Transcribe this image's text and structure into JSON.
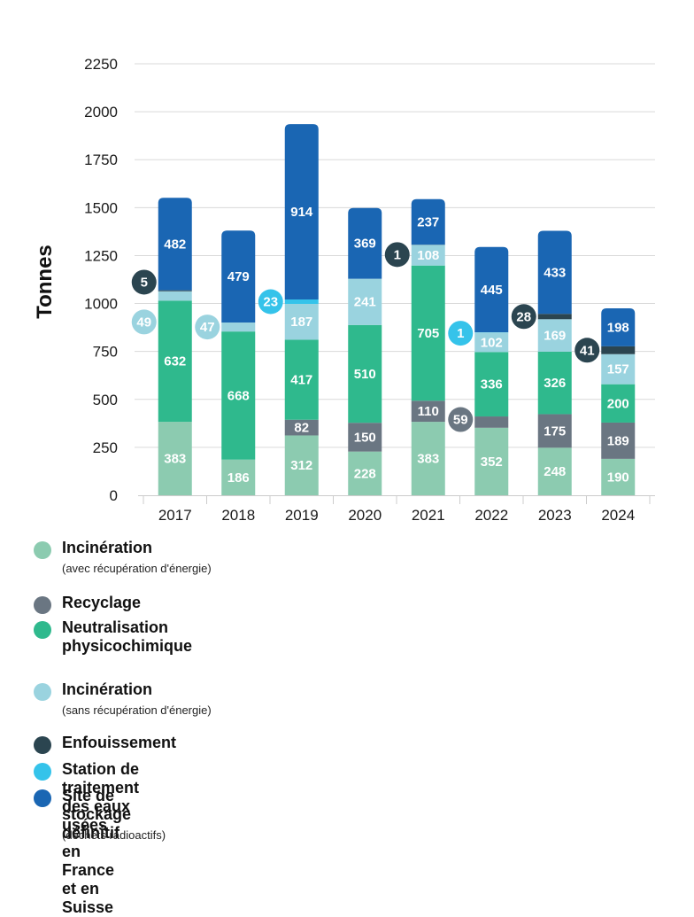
{
  "chart_data": {
    "type": "bar",
    "stacked": true,
    "title": "",
    "xlabel": "",
    "ylabel": "Tonnes",
    "ylim": [
      0,
      2250
    ],
    "yticks": [
      0,
      250,
      500,
      750,
      1000,
      1250,
      1500,
      1750,
      2000,
      2250
    ],
    "grid": true,
    "legend_position": "bottom",
    "categories": [
      "2017",
      "2018",
      "2019",
      "2020",
      "2021",
      "2022",
      "2023",
      "2024"
    ],
    "series": [
      {
        "name": "Incinération",
        "subtitle": "(avec récupération d'énergie)",
        "color": "#8ccbb0",
        "values": [
          383,
          186,
          312,
          228,
          383,
          352,
          248,
          190
        ]
      },
      {
        "name": "Recyclage",
        "subtitle": "",
        "color": "#6a7682",
        "values": [
          0,
          0,
          82,
          150,
          110,
          59,
          175,
          189
        ]
      },
      {
        "name": "Neutralisation physicochimique",
        "subtitle": "",
        "color": "#2fb98d",
        "values": [
          632,
          668,
          417,
          510,
          705,
          336,
          326,
          200
        ]
      },
      {
        "name": "Incinération",
        "subtitle": "(sans récupération d'énergie)",
        "color": "#9ad3df",
        "values": [
          49,
          47,
          187,
          241,
          108,
          102,
          169,
          157
        ]
      },
      {
        "name": "Enfouissement",
        "subtitle": "",
        "color": "#2b4550",
        "values": [
          5,
          0,
          0,
          0,
          1,
          0,
          28,
          41
        ]
      },
      {
        "name": "Station de traitement des eaux usées",
        "subtitle": "",
        "color": "#35c3ea",
        "values": [
          0,
          0,
          23,
          0,
          0,
          1,
          0,
          0
        ]
      },
      {
        "name": "Site de stockage définitif\nen France et en Suisse",
        "subtitle": "(déchets radioactifs)",
        "color": "#1a66b3",
        "values": [
          482,
          479,
          914,
          369,
          237,
          445,
          433,
          198
        ]
      }
    ],
    "callouts": [
      {
        "category": "2017",
        "series_index": 4,
        "label": "5",
        "side": "left"
      },
      {
        "category": "2017",
        "series_index": 3,
        "label": "49",
        "side": "left"
      },
      {
        "category": "2018",
        "series_index": 3,
        "label": "47",
        "side": "left"
      },
      {
        "category": "2019",
        "series_index": 5,
        "label": "23",
        "side": "left"
      },
      {
        "category": "2021",
        "series_index": 4,
        "label": "1",
        "side": "left",
        "at_value": 1255
      },
      {
        "category": "2022",
        "series_index": 5,
        "label": "1",
        "side": "left",
        "at_value": 845
      },
      {
        "category": "2022",
        "series_index": 1,
        "label": "59",
        "side": "left",
        "at_value": 395
      },
      {
        "category": "2023",
        "series_index": 4,
        "label": "28",
        "side": "left"
      },
      {
        "category": "2024",
        "series_index": 4,
        "label": "41",
        "side": "left"
      }
    ]
  }
}
